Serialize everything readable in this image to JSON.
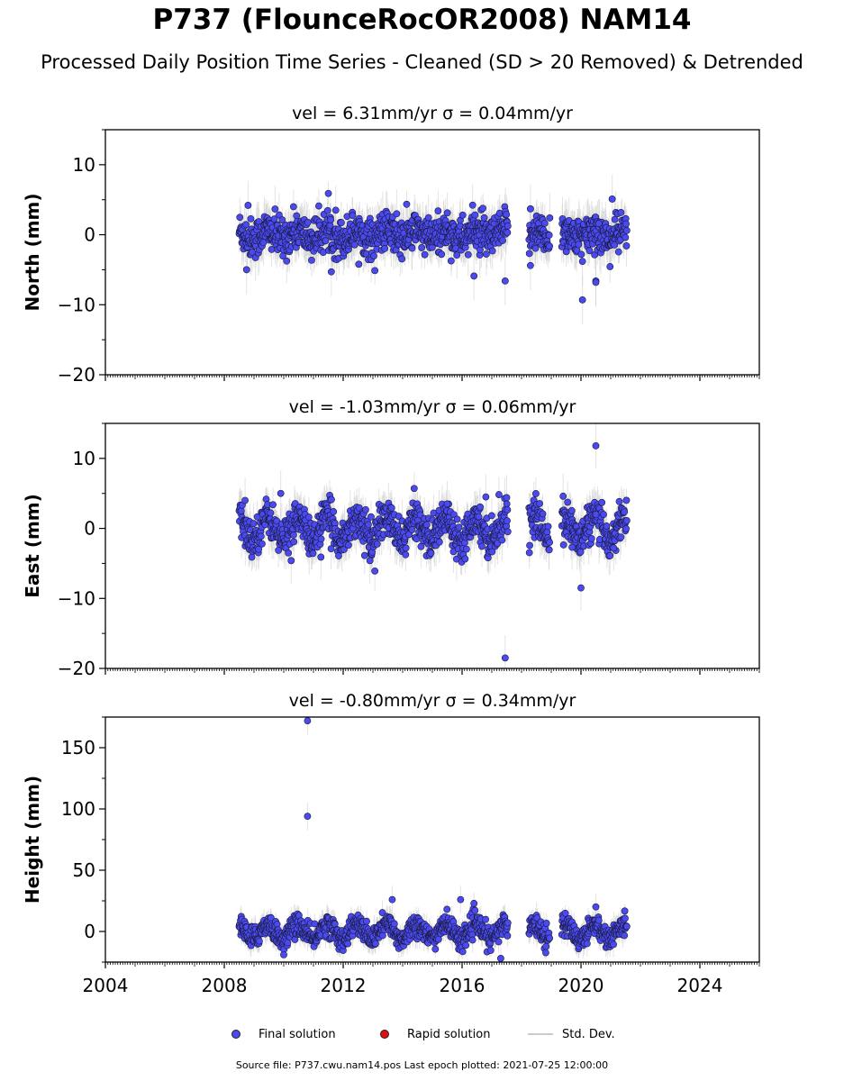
{
  "title": "P737 (FlounceRocOR2008) NAM14",
  "subtitle": "Processed Daily Position Time Series - Cleaned (SD > 20 Removed) & Detrended",
  "source_text": "Source file: P737.cwu.nam14.pos  Last epoch plotted: 2021-07-25 12:00:00",
  "legend": {
    "final": "Final solution",
    "rapid": "Rapid solution",
    "std": "Std. Dev."
  },
  "colors": {
    "final": "#4a4af0",
    "rapid": "#e01010",
    "std": "#cccccc"
  },
  "chart_data": [
    {
      "type": "scatter",
      "panel_title": "vel = 6.31mm/yr   σ = 0.04mm/yr",
      "ylabel": "North (mm)",
      "xlim": [
        2004.0,
        2026.0
      ],
      "ylim": [
        -20,
        15
      ],
      "yticks": [
        -20,
        -10,
        0,
        10
      ],
      "ytick_labels": [
        "−20",
        "−10",
        "0",
        "10"
      ],
      "data_span": [
        2008.5,
        2021.55
      ],
      "gaps": [
        [
          2017.55,
          2018.25
        ],
        [
          2018.95,
          2019.35
        ]
      ],
      "noise_sd": 1.4,
      "seasonal_amp": 0.6,
      "outliers": [
        [
          2008.8,
          4.2
        ],
        [
          2008.75,
          -5.0
        ],
        [
          2011.75,
          3.5
        ],
        [
          2011.6,
          -5.3
        ],
        [
          2013.8,
          3.0
        ],
        [
          2016.4,
          -5.9
        ],
        [
          2017.45,
          -6.6
        ],
        [
          2018.3,
          3.7
        ],
        [
          2018.3,
          -4.4
        ],
        [
          2018.95,
          2.4
        ],
        [
          2020.05,
          -9.3
        ],
        [
          2020.05,
          -3.8
        ],
        [
          2020.5,
          -6.6
        ],
        [
          2020.5,
          -6.8
        ],
        [
          2020.6,
          1.6
        ],
        [
          2021.05,
          5.1
        ]
      ]
    },
    {
      "type": "scatter",
      "panel_title": "vel = -1.03mm/yr   σ = 0.06mm/yr",
      "ylabel": "East (mm)",
      "xlim": [
        2004.0,
        2026.0
      ],
      "ylim": [
        -20,
        15
      ],
      "yticks": [
        -20,
        -10,
        0,
        10
      ],
      "ytick_labels": [
        "−20",
        "−10",
        "0",
        "10"
      ],
      "data_span": [
        2008.5,
        2021.55
      ],
      "gaps": [
        [
          2017.55,
          2018.25
        ],
        [
          2018.95,
          2019.35
        ]
      ],
      "noise_sd": 1.3,
      "seasonal_amp": 1.6,
      "outliers": [
        [
          2008.7,
          4.0
        ],
        [
          2009.9,
          5.0
        ],
        [
          2010.25,
          -4.6
        ],
        [
          2011.25,
          -4.1
        ],
        [
          2012.9,
          -4.6
        ],
        [
          2015.5,
          3.5
        ],
        [
          2016.8,
          4.5
        ],
        [
          2017.5,
          4.4
        ],
        [
          2017.45,
          -18.5
        ],
        [
          2019.4,
          4.6
        ],
        [
          2019.7,
          -2.7
        ],
        [
          2020.0,
          -8.5
        ],
        [
          2020.5,
          11.8
        ],
        [
          2020.5,
          2.0
        ],
        [
          2021.1,
          -2.8
        ]
      ]
    },
    {
      "type": "scatter",
      "panel_title": "vel = -0.80mm/yr   σ = 0.34mm/yr",
      "ylabel": "Height (mm)",
      "xlim": [
        2004.0,
        2026.0
      ],
      "ylim": [
        -25,
        175
      ],
      "yticks": [
        0,
        50,
        100,
        150
      ],
      "ytick_labels": [
        "0",
        "50",
        "100",
        "150"
      ],
      "xticks": [
        2004,
        2008,
        2012,
        2016,
        2020,
        2024
      ],
      "xtick_labels": [
        "2004",
        "2008",
        "2012",
        "2016",
        "2020",
        "2024"
      ],
      "data_span": [
        2008.5,
        2021.55
      ],
      "gaps": [
        [
          2017.55,
          2018.25
        ],
        [
          2018.95,
          2019.35
        ]
      ],
      "noise_sd": 4.5,
      "seasonal_amp": 6.0,
      "outliers": [
        [
          2010.8,
          172.0
        ],
        [
          2010.8,
          94.0
        ],
        [
          2010.0,
          -19.0
        ],
        [
          2013.65,
          26.0
        ],
        [
          2015.95,
          26.0
        ],
        [
          2017.3,
          -22.0
        ],
        [
          2020.5,
          20.0
        ]
      ]
    }
  ]
}
